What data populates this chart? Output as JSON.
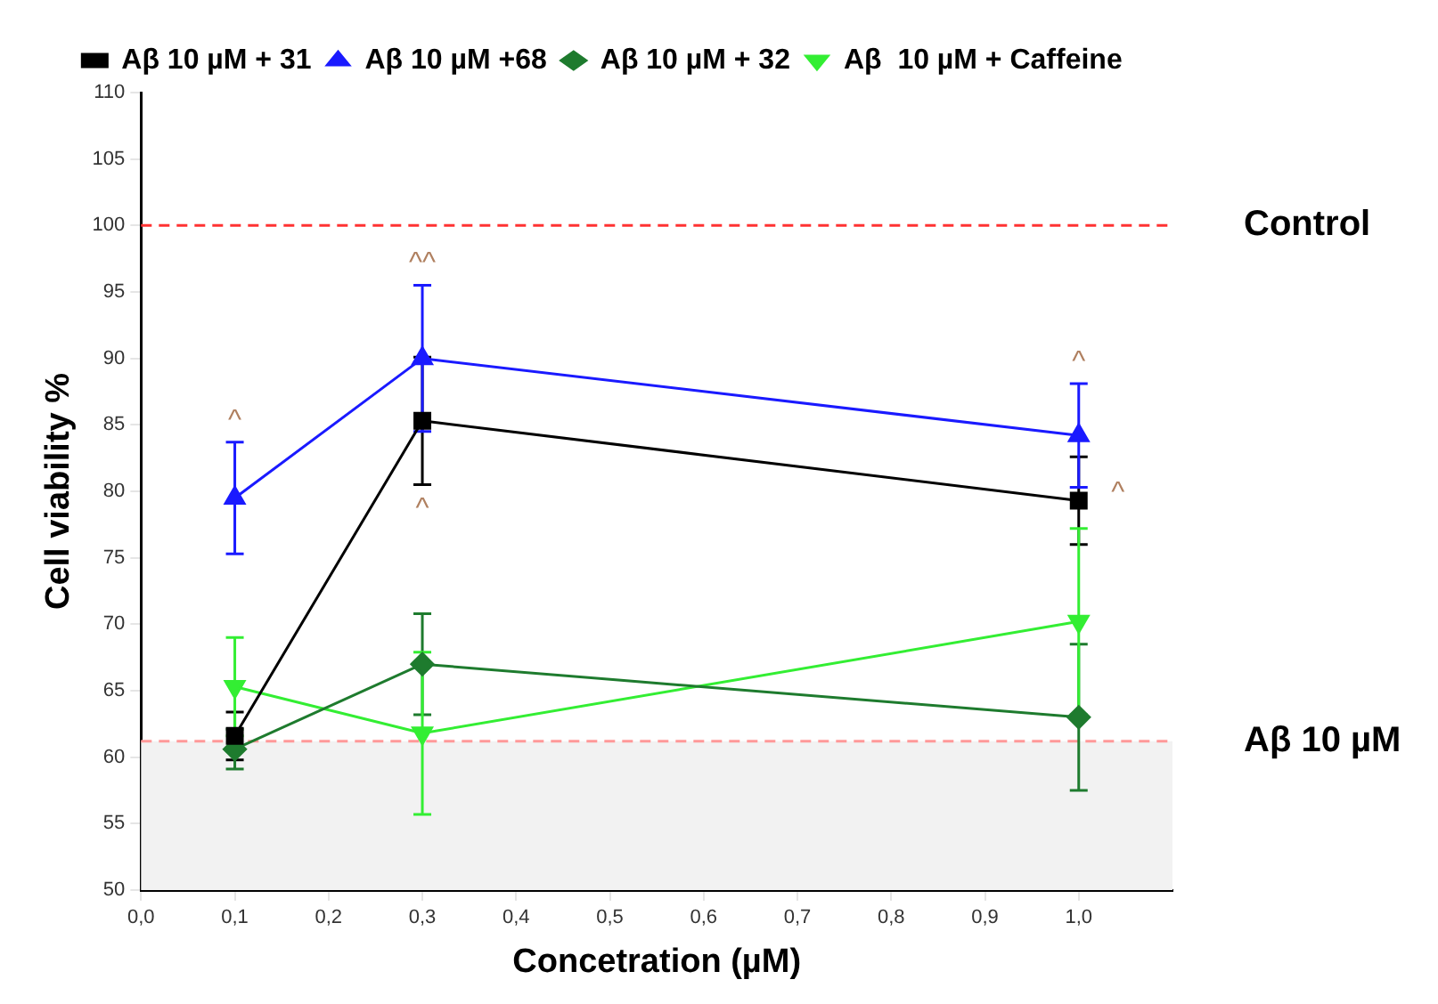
{
  "chart_data": {
    "type": "line",
    "xlabel": "Concetration (µM)",
    "ylabel": "Cell viability %",
    "x": [
      0.1,
      0.3,
      1.0
    ],
    "series": [
      {
        "name": "Aβ 10 µM + 31",
        "color": "#000000",
        "marker": "square",
        "values": [
          61.6,
          85.3,
          79.3
        ],
        "errors": [
          1.8,
          4.8,
          3.3
        ],
        "value_labels": [
          null,
          "^",
          "^"
        ]
      },
      {
        "name": "Aβ 10 µM +68",
        "color": "#1a1aff",
        "marker": "triangle",
        "values": [
          79.5,
          90.0,
          84.2
        ],
        "errors": [
          4.2,
          5.5,
          3.9
        ],
        "value_labels": [
          "^",
          "^^",
          "^"
        ]
      },
      {
        "name": "Aβ 10 µM + 32",
        "color": "#1e7b2e",
        "marker": "diamond",
        "values": [
          60.6,
          67.0,
          63.0
        ],
        "errors": [
          1.5,
          3.8,
          5.5
        ]
      },
      {
        "name": "Aβ  10 µM + Caffeine",
        "color": "#33ee33",
        "marker": "triangle-down",
        "values": [
          65.3,
          61.8,
          70.2
        ],
        "errors": [
          3.7,
          6.1,
          7.0
        ]
      }
    ],
    "xlim": [
      0,
      1.1
    ],
    "xticks": [
      {
        "value": 0,
        "label": "0,0"
      },
      {
        "value": 0.1,
        "label": "0,1"
      },
      {
        "value": 0.2,
        "label": "0,2"
      },
      {
        "value": 0.3,
        "label": "0,3"
      },
      {
        "value": 0.4,
        "label": "0,4"
      },
      {
        "value": 0.5,
        "label": "0,5"
      },
      {
        "value": 0.6,
        "label": "0,6"
      },
      {
        "value": 0.7,
        "label": "0,7"
      },
      {
        "value": 0.8,
        "label": "0,8"
      },
      {
        "value": 0.9,
        "label": "0,9"
      },
      {
        "value": 1.0,
        "label": "1,0"
      }
    ],
    "ylim": [
      50,
      110
    ],
    "yticks": [
      50,
      55,
      60,
      65,
      70,
      75,
      80,
      85,
      90,
      95,
      100,
      105,
      110
    ],
    "ref_lines": [
      {
        "axis": "y",
        "value": 100,
        "label": "Control",
        "color": "#ff3333",
        "line_style": "dashed"
      },
      {
        "axis": "y",
        "value": 61.2,
        "label": "Aβ 10 µM",
        "color": "#ff9999",
        "line_style": "dashed"
      }
    ],
    "bands": [
      {
        "axis": "y",
        "from": 50,
        "to": 61.2,
        "color": "#f2f2f2"
      }
    ],
    "grid": false,
    "legend": "top",
    "line_style": "solid"
  }
}
